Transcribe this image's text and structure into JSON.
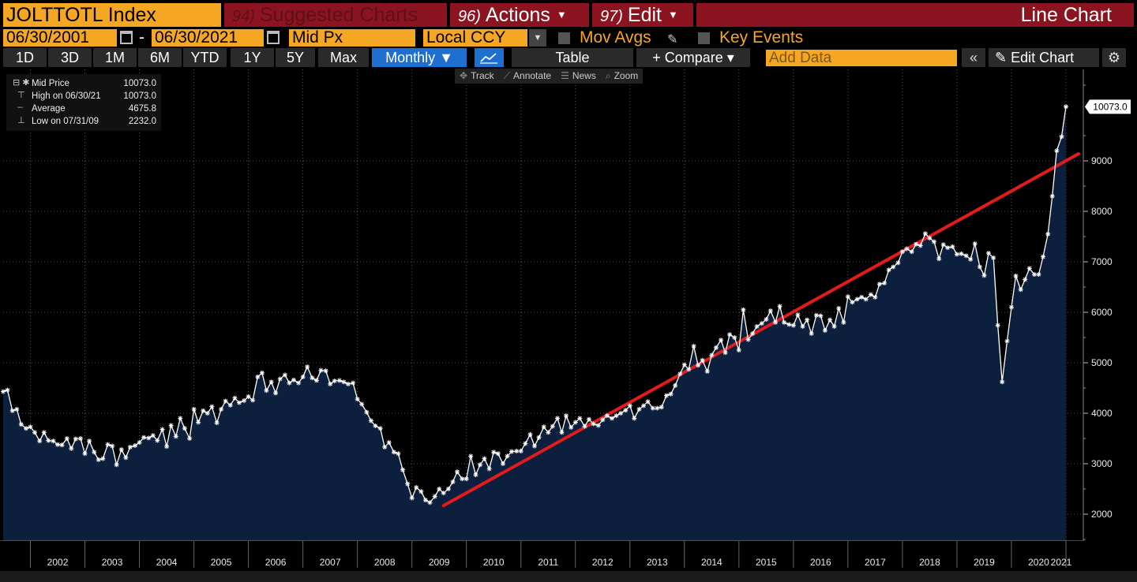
{
  "header": {
    "ticker": "JOLTTOTL Index",
    "suggested_num": "94)",
    "suggested_label": "Suggested Charts",
    "actions_num": "96)",
    "actions_label": "Actions",
    "edit_num": "97)",
    "edit_label": "Edit",
    "chart_type": "Line Chart"
  },
  "controls": {
    "start_date": "06/30/2001",
    "date_separator": "-",
    "end_date": "06/30/2021",
    "field": "Mid Px",
    "currency": "Local CCY",
    "mov_avgs": "Mov Avgs",
    "key_events": "Key Events"
  },
  "periods": [
    "1D",
    "3D",
    "1M",
    "6M",
    "YTD",
    "1Y",
    "5Y",
    "Max"
  ],
  "frequency": "Monthly ▼",
  "toolbar": {
    "table": "Table",
    "compare": "+ Compare ▾",
    "add_data_placeholder": "Add Data",
    "edit_chart": "Edit Chart"
  },
  "chart_tools": [
    "Track",
    "Annotate",
    "News",
    "Zoom"
  ],
  "legend": {
    "rows": [
      {
        "label": "Mid Price",
        "value": "10073.0"
      },
      {
        "label": "High on 06/30/21",
        "value": "10073.0"
      },
      {
        "label": "Average",
        "value": "4675.8"
      },
      {
        "label": "Low on 07/31/09",
        "value": "2232.0"
      }
    ]
  },
  "colors": {
    "orange": "#f5a623",
    "header_red": "#8c1420",
    "fill": "#0c1f3d",
    "line": "#ffffff",
    "trendline": "#e31b1b"
  },
  "chart_data": {
    "type": "area",
    "title": "JOLTTOTL Index",
    "frequency": "Monthly",
    "x_unit": "year",
    "xlim": [
      2001.5,
      2021.5
    ],
    "ylim": [
      1500,
      10700
    ],
    "yticks": [
      2000,
      3000,
      4000,
      5000,
      6000,
      7000,
      8000,
      9000
    ],
    "xtick_labels": [
      "2002",
      "2003",
      "2004",
      "2005",
      "2006",
      "2007",
      "2008",
      "2009",
      "2010",
      "2011",
      "2012",
      "2013",
      "2014",
      "2015",
      "2016",
      "2017",
      "2018",
      "2019",
      "2020",
      "2021"
    ],
    "last_value_label": "10073.0",
    "series": [
      {
        "name": "Mid Price",
        "points": [
          [
            2001.5,
            4430
          ],
          [
            2001.58,
            4460
          ],
          [
            2001.67,
            4050
          ],
          [
            2001.75,
            4080
          ],
          [
            2001.83,
            3780
          ],
          [
            2001.92,
            3700
          ],
          [
            2002.0,
            3730
          ],
          [
            2002.08,
            3620
          ],
          [
            2002.17,
            3450
          ],
          [
            2002.25,
            3620
          ],
          [
            2002.33,
            3460
          ],
          [
            2002.42,
            3450
          ],
          [
            2002.5,
            3380
          ],
          [
            2002.58,
            3370
          ],
          [
            2002.67,
            3500
          ],
          [
            2002.75,
            3300
          ],
          [
            2002.83,
            3490
          ],
          [
            2002.92,
            3500
          ],
          [
            2003.0,
            3200
          ],
          [
            2003.08,
            3450
          ],
          [
            2003.17,
            3230
          ],
          [
            2003.25,
            3080
          ],
          [
            2003.33,
            3100
          ],
          [
            2003.42,
            3380
          ],
          [
            2003.5,
            3350
          ],
          [
            2003.58,
            2980
          ],
          [
            2003.67,
            3280
          ],
          [
            2003.75,
            3120
          ],
          [
            2003.83,
            3330
          ],
          [
            2003.92,
            3360
          ],
          [
            2004.0,
            3420
          ],
          [
            2004.08,
            3520
          ],
          [
            2004.17,
            3510
          ],
          [
            2004.25,
            3560
          ],
          [
            2004.33,
            3460
          ],
          [
            2004.42,
            3680
          ],
          [
            2004.5,
            3340
          ],
          [
            2004.58,
            3760
          ],
          [
            2004.67,
            3540
          ],
          [
            2004.75,
            3900
          ],
          [
            2004.83,
            3700
          ],
          [
            2004.92,
            3500
          ],
          [
            2005.0,
            4080
          ],
          [
            2005.08,
            3820
          ],
          [
            2005.17,
            4050
          ],
          [
            2005.25,
            4000
          ],
          [
            2005.33,
            4130
          ],
          [
            2005.42,
            3810
          ],
          [
            2005.5,
            4080
          ],
          [
            2005.58,
            4240
          ],
          [
            2005.67,
            4160
          ],
          [
            2005.75,
            4300
          ],
          [
            2005.83,
            4210
          ],
          [
            2005.92,
            4250
          ],
          [
            2006.0,
            4330
          ],
          [
            2006.08,
            4260
          ],
          [
            2006.17,
            4720
          ],
          [
            2006.25,
            4800
          ],
          [
            2006.33,
            4450
          ],
          [
            2006.42,
            4620
          ],
          [
            2006.5,
            4400
          ],
          [
            2006.58,
            4680
          ],
          [
            2006.67,
            4760
          ],
          [
            2006.75,
            4600
          ],
          [
            2006.83,
            4660
          ],
          [
            2006.92,
            4600
          ],
          [
            2007.0,
            4720
          ],
          [
            2007.08,
            4920
          ],
          [
            2007.17,
            4700
          ],
          [
            2007.25,
            4650
          ],
          [
            2007.33,
            4850
          ],
          [
            2007.42,
            4840
          ],
          [
            2007.5,
            4580
          ],
          [
            2007.58,
            4640
          ],
          [
            2007.67,
            4650
          ],
          [
            2007.75,
            4620
          ],
          [
            2007.83,
            4580
          ],
          [
            2007.92,
            4600
          ],
          [
            2008.0,
            4280
          ],
          [
            2008.08,
            4180
          ],
          [
            2008.17,
            4020
          ],
          [
            2008.25,
            3850
          ],
          [
            2008.33,
            3750
          ],
          [
            2008.42,
            3700
          ],
          [
            2008.5,
            3330
          ],
          [
            2008.58,
            3420
          ],
          [
            2008.67,
            3230
          ],
          [
            2008.75,
            3200
          ],
          [
            2008.83,
            2880
          ],
          [
            2008.92,
            2600
          ],
          [
            2009.0,
            2320
          ],
          [
            2009.08,
            2530
          ],
          [
            2009.17,
            2450
          ],
          [
            2009.25,
            2280
          ],
          [
            2009.33,
            2232
          ],
          [
            2009.42,
            2350
          ],
          [
            2009.5,
            2500
          ],
          [
            2009.58,
            2420
          ],
          [
            2009.67,
            2500
          ],
          [
            2009.75,
            2640
          ],
          [
            2009.83,
            2840
          ],
          [
            2009.92,
            2700
          ],
          [
            2010.0,
            2700
          ],
          [
            2010.08,
            3150
          ],
          [
            2010.17,
            2780
          ],
          [
            2010.25,
            2980
          ],
          [
            2010.33,
            3100
          ],
          [
            2010.42,
            2900
          ],
          [
            2010.5,
            3230
          ],
          [
            2010.58,
            3200
          ],
          [
            2010.67,
            3000
          ],
          [
            2010.75,
            3150
          ],
          [
            2010.83,
            3240
          ],
          [
            2010.92,
            3250
          ],
          [
            2011.0,
            3250
          ],
          [
            2011.08,
            3400
          ],
          [
            2011.17,
            3580
          ],
          [
            2011.25,
            3350
          ],
          [
            2011.33,
            3520
          ],
          [
            2011.42,
            3730
          ],
          [
            2011.5,
            3620
          ],
          [
            2011.58,
            3740
          ],
          [
            2011.67,
            3900
          ],
          [
            2011.75,
            3620
          ],
          [
            2011.83,
            3950
          ],
          [
            2011.92,
            3720
          ],
          [
            2012.0,
            3820
          ],
          [
            2012.08,
            3900
          ],
          [
            2012.17,
            3740
          ],
          [
            2012.25,
            3880
          ],
          [
            2012.33,
            3790
          ],
          [
            2012.42,
            3760
          ],
          [
            2012.5,
            3870
          ],
          [
            2012.58,
            3950
          ],
          [
            2012.67,
            3900
          ],
          [
            2012.75,
            3950
          ],
          [
            2012.83,
            4000
          ],
          [
            2012.92,
            4060
          ],
          [
            2013.0,
            4150
          ],
          [
            2013.08,
            3900
          ],
          [
            2013.17,
            4080
          ],
          [
            2013.25,
            4150
          ],
          [
            2013.33,
            4230
          ],
          [
            2013.42,
            4100
          ],
          [
            2013.5,
            4100
          ],
          [
            2013.58,
            4120
          ],
          [
            2013.67,
            4350
          ],
          [
            2013.75,
            4380
          ],
          [
            2013.83,
            4550
          ],
          [
            2013.92,
            4780
          ],
          [
            2014.0,
            4960
          ],
          [
            2014.08,
            4870
          ],
          [
            2014.17,
            5330
          ],
          [
            2014.25,
            4950
          ],
          [
            2014.33,
            5050
          ],
          [
            2014.42,
            4830
          ],
          [
            2014.5,
            5150
          ],
          [
            2014.58,
            5300
          ],
          [
            2014.67,
            5450
          ],
          [
            2014.75,
            5200
          ],
          [
            2014.83,
            5560
          ],
          [
            2014.92,
            5500
          ],
          [
            2015.0,
            5250
          ],
          [
            2015.08,
            6050
          ],
          [
            2015.17,
            5460
          ],
          [
            2015.25,
            5580
          ],
          [
            2015.33,
            5720
          ],
          [
            2015.42,
            5780
          ],
          [
            2015.5,
            5860
          ],
          [
            2015.58,
            6030
          ],
          [
            2015.67,
            5800
          ],
          [
            2015.75,
            6120
          ],
          [
            2015.83,
            5800
          ],
          [
            2015.92,
            5760
          ],
          [
            2016.0,
            5740
          ],
          [
            2016.08,
            5950
          ],
          [
            2016.17,
            5720
          ],
          [
            2016.25,
            5850
          ],
          [
            2016.33,
            5580
          ],
          [
            2016.42,
            5940
          ],
          [
            2016.5,
            5930
          ],
          [
            2016.58,
            5640
          ],
          [
            2016.67,
            5850
          ],
          [
            2016.75,
            5720
          ],
          [
            2016.83,
            6080
          ],
          [
            2016.92,
            5800
          ],
          [
            2017.0,
            6310
          ],
          [
            2017.08,
            6200
          ],
          [
            2017.17,
            6260
          ],
          [
            2017.25,
            6300
          ],
          [
            2017.33,
            6260
          ],
          [
            2017.42,
            6350
          ],
          [
            2017.5,
            6300
          ],
          [
            2017.58,
            6560
          ],
          [
            2017.67,
            6580
          ],
          [
            2017.75,
            6840
          ],
          [
            2017.83,
            6900
          ],
          [
            2017.92,
            6980
          ],
          [
            2018.0,
            7200
          ],
          [
            2018.08,
            7260
          ],
          [
            2018.17,
            7200
          ],
          [
            2018.25,
            7350
          ],
          [
            2018.33,
            7320
          ],
          [
            2018.42,
            7560
          ],
          [
            2018.5,
            7470
          ],
          [
            2018.58,
            7400
          ],
          [
            2018.67,
            7060
          ],
          [
            2018.75,
            7340
          ],
          [
            2018.83,
            7280
          ],
          [
            2018.92,
            7300
          ],
          [
            2019.0,
            7150
          ],
          [
            2019.08,
            7160
          ],
          [
            2019.17,
            7120
          ],
          [
            2019.25,
            7050
          ],
          [
            2019.33,
            7360
          ],
          [
            2019.42,
            6900
          ],
          [
            2019.5,
            6730
          ],
          [
            2019.58,
            7170
          ],
          [
            2019.67,
            7080
          ],
          [
            2019.75,
            5740
          ],
          [
            2019.83,
            4620
          ],
          [
            2019.92,
            5430
          ],
          [
            2020.0,
            6100
          ],
          [
            2020.08,
            6720
          ],
          [
            2020.17,
            6450
          ],
          [
            2020.25,
            6650
          ],
          [
            2020.33,
            6870
          ],
          [
            2020.42,
            6750
          ],
          [
            2020.5,
            6750
          ],
          [
            2020.58,
            7100
          ],
          [
            2020.67,
            7550
          ],
          [
            2020.75,
            8300
          ],
          [
            2020.83,
            9200
          ],
          [
            2020.92,
            9480
          ],
          [
            2021.0,
            10073
          ]
        ]
      }
    ],
    "trendline": {
      "color": "red",
      "from": [
        2009.58,
        2170
      ],
      "to": [
        2021.5,
        9140
      ]
    }
  }
}
